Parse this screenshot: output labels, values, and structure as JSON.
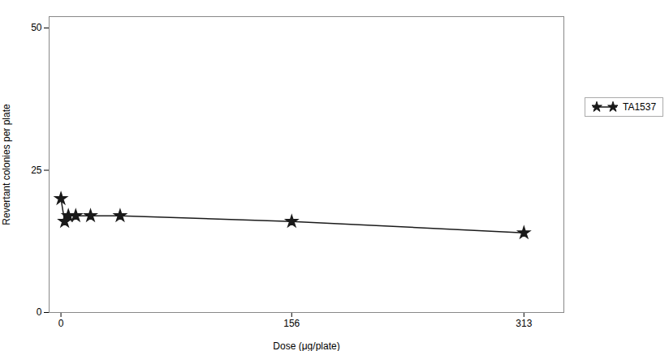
{
  "chart_data": {
    "type": "line",
    "x": [
      0,
      2.5,
      5,
      10,
      20,
      40,
      156,
      313
    ],
    "series": [
      {
        "name": "TA1537",
        "color": "#1a1a1a",
        "marker": "star",
        "values": [
          20,
          16,
          17,
          17,
          17,
          17,
          16,
          14
        ]
      }
    ],
    "xlim": [
      -8,
      340
    ],
    "ylim": [
      0,
      52
    ],
    "xticks": [
      0,
      156,
      313
    ],
    "yticks": [
      0,
      25,
      50
    ],
    "xlabel": "Dose (μg/plate)",
    "ylabel": "Revertant colonies per plate",
    "grid": false,
    "legend": "right"
  }
}
